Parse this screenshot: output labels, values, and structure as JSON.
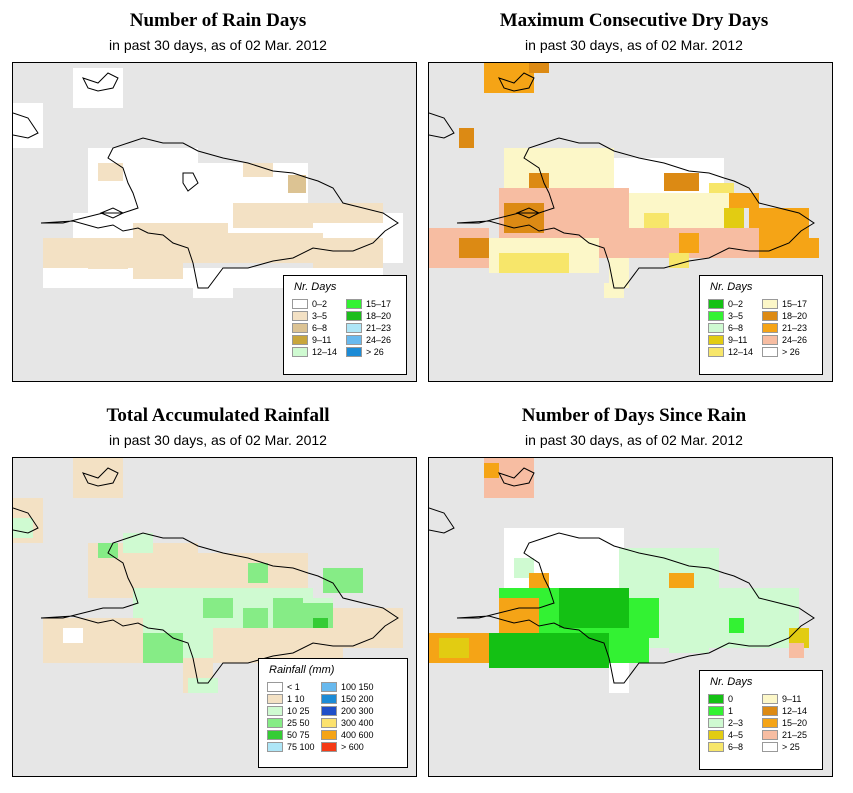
{
  "panels": [
    {
      "title": "Number of Rain Days",
      "subtitle": "in past 30 days, as of  02 Mar. 2012",
      "legend_title": "Nr. Days",
      "legend": [
        {
          "label": "0–2",
          "color": "#ffffff"
        },
        {
          "label": "3–5",
          "color": "#f3e1c4"
        },
        {
          "label": "6–8",
          "color": "#dcc393"
        },
        {
          "label": "9–11",
          "color": "#c8a63c"
        },
        {
          "label": "12–14",
          "color": "#cffad1"
        },
        {
          "label": "15–17",
          "color": "#33f233"
        },
        {
          "label": "18–20",
          "color": "#1dbd1d"
        },
        {
          "label": "21–23",
          "color": "#aee6f7"
        },
        {
          "label": "24–26",
          "color": "#68b9ee"
        },
        {
          "label": "> 26",
          "color": "#1c8bd6"
        }
      ]
    },
    {
      "title": "Maximum Consecutive Dry Days",
      "subtitle": "in past 30 days, as of  02 Mar. 2012",
      "legend_title": "Nr. Days",
      "legend": [
        {
          "label": "0–2",
          "color": "#14c114"
        },
        {
          "label": "3–5",
          "color": "#33f233"
        },
        {
          "label": "6–8",
          "color": "#cffad1"
        },
        {
          "label": "9–11",
          "color": "#e2cc12"
        },
        {
          "label": "12–14",
          "color": "#f7e66a"
        },
        {
          "label": "15–17",
          "color": "#fcf7c8"
        },
        {
          "label": "18–20",
          "color": "#dc8a14"
        },
        {
          "label": "21–23",
          "color": "#f5a416"
        },
        {
          "label": "24–26",
          "color": "#f7bda2"
        },
        {
          "label": "> 26",
          "color": "#ffffff"
        }
      ]
    },
    {
      "title": "Total Accumulated Rainfall",
      "subtitle": "in past 30 days, as of  02 Mar. 2012",
      "legend_title": "Rainfall (mm)",
      "legend": [
        {
          "label": "< 1",
          "color": "#ffffff"
        },
        {
          "label": "1   10",
          "color": "#f3e1c4"
        },
        {
          "label": "10   25",
          "color": "#cffad1"
        },
        {
          "label": "25   50",
          "color": "#86ec86"
        },
        {
          "label": "50   75",
          "color": "#35cc35"
        },
        {
          "label": "75  100",
          "color": "#aee6f7"
        },
        {
          "label": "100  150",
          "color": "#68b9ee"
        },
        {
          "label": "150  200",
          "color": "#1c8bd6"
        },
        {
          "label": "200  300",
          "color": "#1f4fc8"
        },
        {
          "label": "300  400",
          "color": "#fce26e"
        },
        {
          "label": "400  600",
          "color": "#f5a416"
        },
        {
          "label": "> 600",
          "color": "#f53a16"
        }
      ]
    },
    {
      "title": "Number of Days Since Rain",
      "subtitle": "in past 30 days, as of  02 Mar. 2012",
      "legend_title": "Nr. Days",
      "legend": [
        {
          "label": "0",
          "color": "#14c114"
        },
        {
          "label": "1",
          "color": "#33f233"
        },
        {
          "label": "2–3",
          "color": "#cffad1"
        },
        {
          "label": "4–5",
          "color": "#e2cc12"
        },
        {
          "label": "6–8",
          "color": "#f7e66a"
        },
        {
          "label": "9–11",
          "color": "#fcf7c8"
        },
        {
          "label": "12–14",
          "color": "#dc8a14"
        },
        {
          "label": "15–20",
          "color": "#f5a416"
        },
        {
          "label": "21–25",
          "color": "#f7bda2"
        },
        {
          "label": "> 25",
          "color": "#ffffff"
        }
      ]
    }
  ],
  "colors": {
    "map_background": "#e6e6e6",
    "coastline": "#000000"
  }
}
